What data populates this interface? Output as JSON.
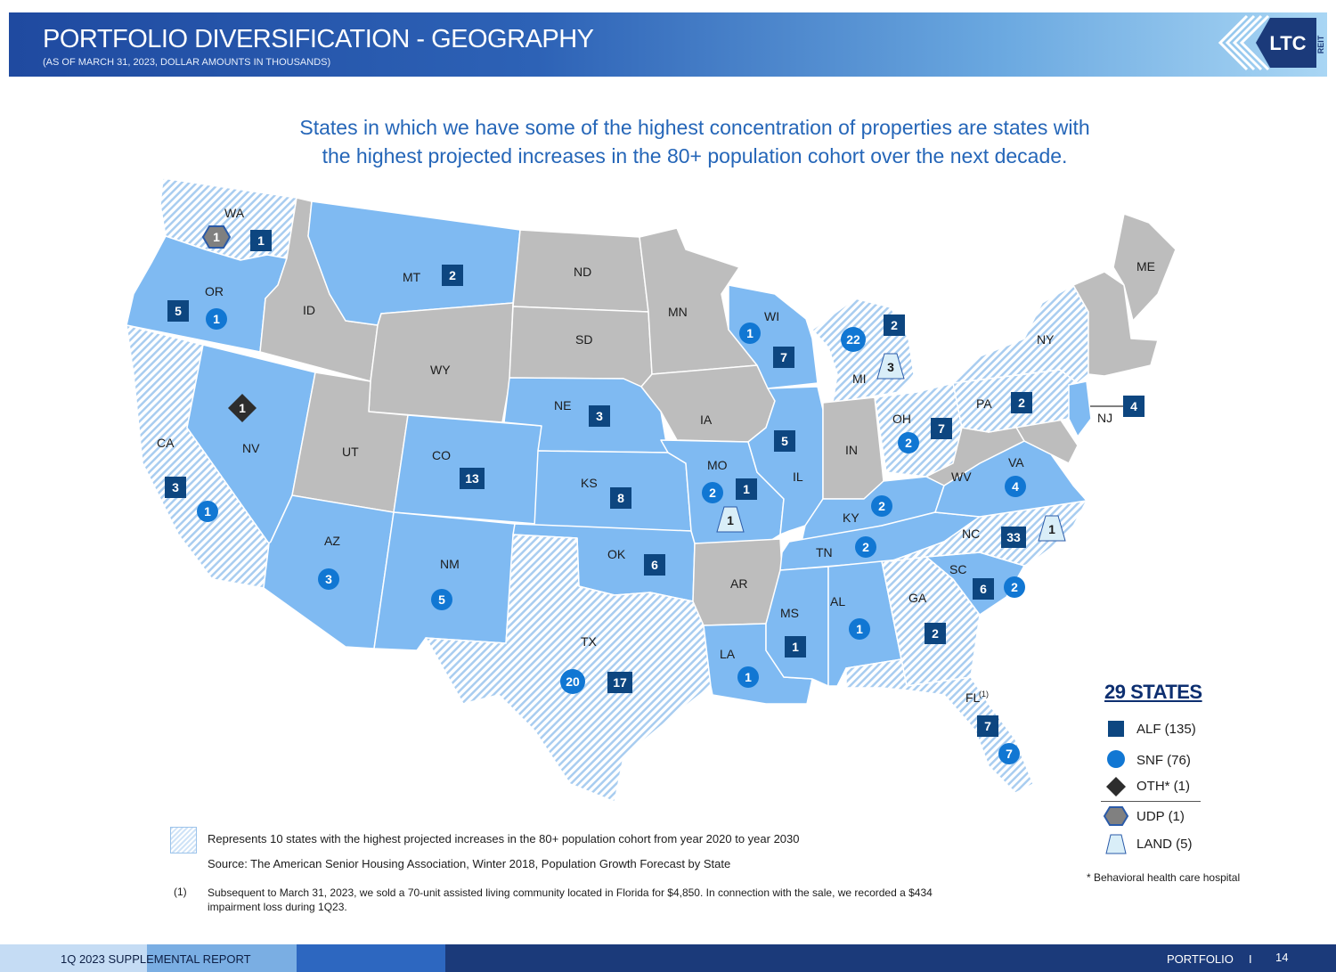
{
  "header": {
    "title": "PORTFOLIO DIVERSIFICATION - GEOGRAPHY",
    "subtitle": "(AS OF MARCH 31, 2023, DOLLAR AMOUNTS IN THOUSANDS)",
    "logo_text": "LTC",
    "logo_sub": "REIT"
  },
  "headline": {
    "line1": "States in which we have some of the highest concentration of properties are states with",
    "line2": "the highest projected increases in the 80+ population cohort over the next decade."
  },
  "colors": {
    "portfolio_state": "#7fbaf2",
    "other_state": "#bdbdbd",
    "alf": "#0d4680",
    "snf": "#1177d3",
    "oth": "#2d2d2d",
    "udp": "#808080",
    "land": "#d9eef8"
  },
  "states": {
    "WA": "WA",
    "OR": "OR",
    "CA": "CA",
    "ID": "ID",
    "NV": "NV",
    "MT": "MT",
    "WY": "WY",
    "UT": "UT",
    "CO": "CO",
    "AZ": "AZ",
    "NM": "NM",
    "ND": "ND",
    "SD": "SD",
    "NE": "NE",
    "KS": "KS",
    "OK": "OK",
    "TX": "TX",
    "MN": "MN",
    "IA": "IA",
    "MO": "MO",
    "AR": "AR",
    "LA": "LA",
    "WI": "WI",
    "IL": "IL",
    "MI": "MI",
    "IN": "IN",
    "OH": "OH",
    "KY": "KY",
    "TN": "TN",
    "MS": "MS",
    "AL": "AL",
    "GA": "GA",
    "FL": "FL",
    "SC": "SC",
    "NC": "NC",
    "VA": "VA",
    "WV": "WV",
    "PA": "PA",
    "NY": "NY",
    "NJ": "NJ",
    "ME": "ME"
  },
  "fl_note_marker": "(1)",
  "markers": [
    {
      "state": "WA",
      "type": "UDP",
      "value": "1"
    },
    {
      "state": "WA",
      "type": "ALF",
      "value": "1"
    },
    {
      "state": "OR",
      "type": "ALF",
      "value": "5"
    },
    {
      "state": "OR",
      "type": "SNF",
      "value": "1"
    },
    {
      "state": "MT",
      "type": "ALF",
      "value": "2"
    },
    {
      "state": "NV",
      "type": "OTH",
      "value": "1"
    },
    {
      "state": "CA",
      "type": "ALF",
      "value": "3"
    },
    {
      "state": "CA",
      "type": "SNF",
      "value": "1"
    },
    {
      "state": "CO",
      "type": "ALF",
      "value": "13"
    },
    {
      "state": "AZ",
      "type": "SNF",
      "value": "3"
    },
    {
      "state": "NM",
      "type": "SNF",
      "value": "5"
    },
    {
      "state": "NE",
      "type": "ALF",
      "value": "3"
    },
    {
      "state": "KS",
      "type": "ALF",
      "value": "8"
    },
    {
      "state": "OK",
      "type": "ALF",
      "value": "6"
    },
    {
      "state": "TX",
      "type": "SNF",
      "value": "20"
    },
    {
      "state": "TX",
      "type": "ALF",
      "value": "17"
    },
    {
      "state": "WI",
      "type": "SNF",
      "value": "1"
    },
    {
      "state": "WI",
      "type": "ALF",
      "value": "7"
    },
    {
      "state": "MI",
      "type": "SNF",
      "value": "22"
    },
    {
      "state": "MI",
      "type": "ALF",
      "value": "2"
    },
    {
      "state": "MI",
      "type": "LAND",
      "value": "3"
    },
    {
      "state": "IL",
      "type": "ALF",
      "value": "5"
    },
    {
      "state": "MO",
      "type": "SNF",
      "value": "2"
    },
    {
      "state": "MO",
      "type": "ALF",
      "value": "1"
    },
    {
      "state": "MO",
      "type": "LAND",
      "value": "1"
    },
    {
      "state": "OH",
      "type": "ALF",
      "value": "7"
    },
    {
      "state": "OH",
      "type": "SNF",
      "value": "2"
    },
    {
      "state": "KY",
      "type": "SNF",
      "value": "2"
    },
    {
      "state": "TN",
      "type": "SNF",
      "value": "2"
    },
    {
      "state": "PA",
      "type": "ALF",
      "value": "2"
    },
    {
      "state": "NJ",
      "type": "ALF",
      "value": "4"
    },
    {
      "state": "VA",
      "type": "SNF",
      "value": "4"
    },
    {
      "state": "NC",
      "type": "ALF",
      "value": "33"
    },
    {
      "state": "NC",
      "type": "LAND",
      "value": "1"
    },
    {
      "state": "SC",
      "type": "ALF",
      "value": "6"
    },
    {
      "state": "SC",
      "type": "SNF",
      "value": "2"
    },
    {
      "state": "GA",
      "type": "ALF",
      "value": "2"
    },
    {
      "state": "AL",
      "type": "SNF",
      "value": "1"
    },
    {
      "state": "MS",
      "type": "ALF",
      "value": "1"
    },
    {
      "state": "LA",
      "type": "SNF",
      "value": "1"
    },
    {
      "state": "FL",
      "type": "ALF",
      "value": "7"
    },
    {
      "state": "FL",
      "type": "SNF",
      "value": "7"
    }
  ],
  "legend": {
    "title": "29 STATES",
    "items": [
      {
        "type": "ALF",
        "label": "ALF (135)"
      },
      {
        "type": "SNF",
        "label": "SNF (76)"
      },
      {
        "type": "OTH",
        "label": "OTH* (1)"
      },
      {
        "type": "UDP",
        "label": "UDP (1)"
      },
      {
        "type": "LAND",
        "label": "LAND (5)"
      }
    ],
    "note": "* Behavioral health care hospital"
  },
  "footnotes": {
    "hatch_text": "Represents 10 states with the highest projected increases in the 80+ population cohort from year 2020 to year 2030",
    "source": "Source:  The American Senior Housing Association, Winter 2018, Population Growth Forecast by State",
    "note1_marker": "(1)",
    "note1": "Subsequent to March 31, 2023, we sold a 70-unit assisted living community located in Florida for $4,850. In connection with the sale, we recorded a $434 impairment loss during 1Q23."
  },
  "footer": {
    "left": "1Q 2023 SUPPLEMENTAL REPORT",
    "section": "PORTFOLIO",
    "separator": "I",
    "page": "14"
  }
}
